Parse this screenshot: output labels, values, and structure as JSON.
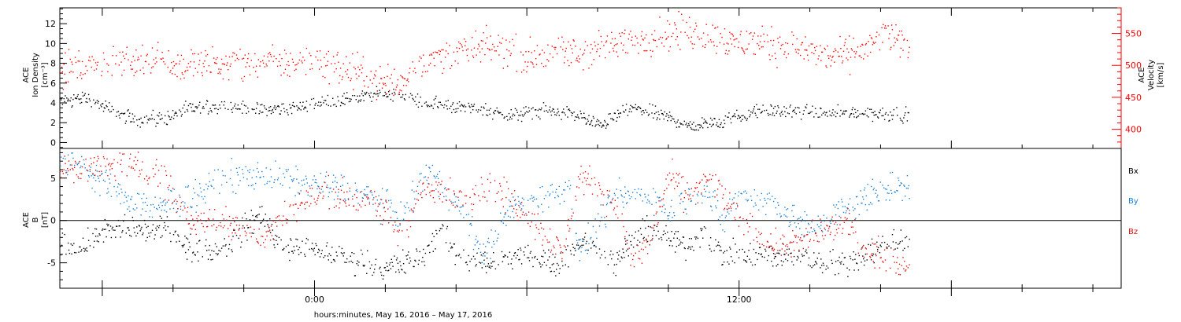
{
  "xlabel": "hours:minutes, May 16, 2016 – May 17, 2016",
  "x_tick_labels": [
    "0:00",
    "12:00"
  ],
  "colors": {
    "density": "#000000",
    "velocity": "#ff0000",
    "bx": "#000000",
    "by": "#1a7fd4",
    "bz": "#e01010"
  },
  "chart_data": [
    {
      "type": "scatter",
      "panel": "plasma",
      "ylabel_lines": [
        "ACE",
        "Ion Density",
        "[cm⁻³]"
      ],
      "y2label_lines": [
        "ACE",
        "Velocity",
        "[km/s]"
      ],
      "xlim": [
        -7.2,
        22.8
      ],
      "data_end": 16.8,
      "ylim": [
        -0.6,
        13.6
      ],
      "yticks": [
        0,
        2,
        4,
        6,
        8,
        10,
        12
      ],
      "y2lim": [
        370,
        590
      ],
      "y2ticks": [
        400,
        450,
        500,
        550
      ],
      "series": [
        {
          "name": "",
          "axis": "left",
          "color": "#000000",
          "anchors": [
            [
              -7.2,
              4.2
            ],
            [
              -6.5,
              4.6
            ],
            [
              -5.5,
              2.8
            ],
            [
              -4.8,
              2.3
            ],
            [
              -4.2,
              2.5
            ],
            [
              -3.5,
              3.5
            ],
            [
              -2.5,
              3.8
            ],
            [
              -1.5,
              3.3
            ],
            [
              -0.5,
              3.6
            ],
            [
              0.5,
              4.2
            ],
            [
              1.5,
              4.8
            ],
            [
              2.3,
              5.0
            ],
            [
              3.0,
              4.0
            ],
            [
              4.5,
              3.5
            ],
            [
              5.5,
              2.8
            ],
            [
              6.5,
              3.2
            ],
            [
              7.3,
              3.0
            ],
            [
              8.0,
              1.8
            ],
            [
              9.0,
              3.5
            ],
            [
              10.0,
              2.6
            ],
            [
              10.6,
              1.7
            ],
            [
              11.5,
              2.3
            ],
            [
              12.5,
              3.2
            ],
            [
              13.5,
              3.2
            ],
            [
              14.5,
              3.0
            ],
            [
              16.0,
              3.0
            ],
            [
              16.8,
              2.8
            ]
          ],
          "noise": 0.6
        },
        {
          "name": "",
          "axis": "right",
          "color": "#ff0000",
          "anchors": [
            [
              -7.2,
              495
            ],
            [
              -6.5,
              500
            ],
            [
              -5.5,
              505
            ],
            [
              -4.5,
              515
            ],
            [
              -3.8,
              500
            ],
            [
              -3.0,
              505
            ],
            [
              -2.0,
              505
            ],
            [
              -1.0,
              505
            ],
            [
              0.0,
              505
            ],
            [
              1.0,
              495
            ],
            [
              2.0,
              475
            ],
            [
              2.4,
              470
            ],
            [
              2.8,
              505
            ],
            [
              4.0,
              520
            ],
            [
              5.0,
              530
            ],
            [
              6.0,
              515
            ],
            [
              7.5,
              520
            ],
            [
              8.5,
              535
            ],
            [
              9.5,
              545
            ],
            [
              10.5,
              555
            ],
            [
              11.5,
              540
            ],
            [
              12.5,
              535
            ],
            [
              13.5,
              530
            ],
            [
              14.5,
              515
            ],
            [
              15.5,
              525
            ],
            [
              16.2,
              548
            ],
            [
              16.8,
              530
            ]
          ],
          "noise": 22
        }
      ]
    },
    {
      "type": "scatter",
      "panel": "magnetic",
      "ylabel_lines": [
        "ACE",
        "B",
        "[nT]"
      ],
      "xlim": [
        -7.2,
        22.8
      ],
      "data_end": 16.8,
      "ylim": [
        -8.0,
        8.5
      ],
      "yticks": [
        -5,
        0,
        5
      ],
      "legend": [
        "Bx",
        "By",
        "Bz"
      ],
      "legend_placement": "right",
      "series": [
        {
          "name": "Bx",
          "color": "#000000",
          "anchors": [
            [
              -7.2,
              -3
            ],
            [
              -6.5,
              -3
            ],
            [
              -6.0,
              -1
            ],
            [
              -5.0,
              -1
            ],
            [
              -4.0,
              -1
            ],
            [
              -3.5,
              -3.5
            ],
            [
              -2.5,
              -3
            ],
            [
              -1.5,
              1
            ],
            [
              -1.0,
              -3
            ],
            [
              -0.5,
              -3
            ],
            [
              0.0,
              -3.5
            ],
            [
              1.0,
              -4.5
            ],
            [
              2.0,
              -5.5
            ],
            [
              3.0,
              -4.5
            ],
            [
              3.5,
              -1
            ],
            [
              4.0,
              -4
            ],
            [
              5.0,
              -5
            ],
            [
              6.0,
              -4
            ],
            [
              7.0,
              -5
            ],
            [
              7.5,
              -2
            ],
            [
              8.5,
              -5
            ],
            [
              9.0,
              -2
            ],
            [
              9.5,
              -1
            ],
            [
              10.5,
              -3
            ],
            [
              11.0,
              -1
            ],
            [
              11.5,
              -4
            ],
            [
              12.5,
              -4
            ],
            [
              13.5,
              -4
            ],
            [
              14.5,
              -5
            ],
            [
              15.0,
              -5
            ],
            [
              16.0,
              -3
            ],
            [
              16.8,
              -2
            ]
          ],
          "noise": 1.3
        },
        {
          "name": "By",
          "color": "#1a7fd4",
          "anchors": [
            [
              -7.2,
              7
            ],
            [
              -6.5,
              6.5
            ],
            [
              -5.5,
              3
            ],
            [
              -4.5,
              1.5
            ],
            [
              -3.5,
              3
            ],
            [
              -2.5,
              5
            ],
            [
              -1.5,
              5.5
            ],
            [
              -0.5,
              4.5
            ],
            [
              0.5,
              4
            ],
            [
              1.5,
              3
            ],
            [
              2.5,
              0.5
            ],
            [
              3.2,
              6
            ],
            [
              4.0,
              2
            ],
            [
              4.8,
              -4
            ],
            [
              5.5,
              1.5
            ],
            [
              6.5,
              3
            ],
            [
              7.2,
              4
            ],
            [
              7.5,
              -4
            ],
            [
              8.5,
              3
            ],
            [
              9.5,
              3
            ],
            [
              10.0,
              1
            ],
            [
              11.0,
              4
            ],
            [
              11.5,
              0
            ],
            [
              12.0,
              3
            ],
            [
              13.0,
              2
            ],
            [
              14.0,
              -1
            ],
            [
              15.0,
              1.5
            ],
            [
              16.0,
              4
            ],
            [
              16.8,
              4
            ]
          ],
          "noise": 1.5
        },
        {
          "name": "Bz",
          "color": "#e01010",
          "anchors": [
            [
              -7.2,
              6
            ],
            [
              -6.5,
              6.5
            ],
            [
              -5.5,
              6.5
            ],
            [
              -4.5,
              6
            ],
            [
              -3.5,
              0
            ],
            [
              -2.5,
              0
            ],
            [
              -1.5,
              -2
            ],
            [
              -0.5,
              2
            ],
            [
              0.5,
              3.5
            ],
            [
              1.5,
              2
            ],
            [
              2.0,
              1
            ],
            [
              2.5,
              -2
            ],
            [
              3.0,
              4
            ],
            [
              4.0,
              3
            ],
            [
              5.0,
              4
            ],
            [
              6.0,
              1
            ],
            [
              7.0,
              -4
            ],
            [
              7.5,
              5.5
            ],
            [
              8.5,
              2
            ],
            [
              9.0,
              -5
            ],
            [
              9.5,
              -2
            ],
            [
              10.0,
              5.5
            ],
            [
              10.5,
              3
            ],
            [
              11.2,
              5
            ],
            [
              12.0,
              0
            ],
            [
              13.0,
              -3
            ],
            [
              14.0,
              -2
            ],
            [
              15.0,
              0
            ],
            [
              15.5,
              -3
            ],
            [
              16.2,
              -4.5
            ],
            [
              16.8,
              -5
            ]
          ],
          "noise": 1.5
        }
      ]
    }
  ]
}
